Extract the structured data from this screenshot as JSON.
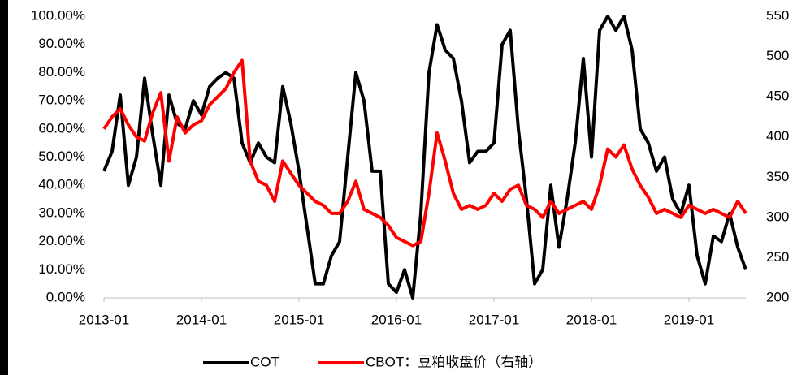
{
  "chart_data": {
    "type": "line",
    "x": [
      "2013-01",
      "2013-02",
      "2013-03",
      "2013-04",
      "2013-05",
      "2013-06",
      "2013-07",
      "2013-08",
      "2013-09",
      "2013-10",
      "2013-11",
      "2013-12",
      "2014-01",
      "2014-02",
      "2014-03",
      "2014-04",
      "2014-05",
      "2014-06",
      "2014-07",
      "2014-08",
      "2014-09",
      "2014-10",
      "2014-11",
      "2014-12",
      "2015-01",
      "2015-02",
      "2015-03",
      "2015-04",
      "2015-05",
      "2015-06",
      "2015-07",
      "2015-08",
      "2015-09",
      "2015-10",
      "2015-11",
      "2015-12",
      "2016-01",
      "2016-02",
      "2016-03",
      "2016-04",
      "2016-05",
      "2016-06",
      "2016-07",
      "2016-08",
      "2016-09",
      "2016-10",
      "2016-11",
      "2016-12",
      "2017-01",
      "2017-02",
      "2017-03",
      "2017-04",
      "2017-05",
      "2017-06",
      "2017-07",
      "2017-08",
      "2017-09",
      "2017-10",
      "2017-11",
      "2017-12",
      "2018-01",
      "2018-02",
      "2018-03",
      "2018-04",
      "2018-05",
      "2018-06",
      "2018-07",
      "2018-08",
      "2018-09",
      "2018-10",
      "2018-11",
      "2018-12",
      "2019-01",
      "2019-02",
      "2019-03",
      "2019-04",
      "2019-05",
      "2019-06",
      "2019-07",
      "2019-08"
    ],
    "xlim": [
      "2013-01",
      "2019-08"
    ],
    "xticks": [
      "2013-01",
      "2014-01",
      "2015-01",
      "2016-01",
      "2017-01",
      "2018-01",
      "2019-01"
    ],
    "series": [
      {
        "name": "COT",
        "color": "#000000",
        "values": [
          45,
          52,
          72,
          40,
          50,
          78,
          58,
          40,
          72,
          62,
          60,
          70,
          65,
          75,
          78,
          80,
          78,
          55,
          48,
          55,
          50,
          48,
          75,
          62,
          45,
          25,
          5,
          5,
          15,
          20,
          50,
          80,
          70,
          45,
          45,
          5,
          2,
          10,
          0,
          30,
          80,
          97,
          88,
          85,
          70,
          48,
          52,
          52,
          55,
          90,
          95,
          60,
          35,
          5,
          10,
          40,
          18,
          35,
          55,
          85,
          50,
          95,
          100,
          95,
          100,
          88,
          60,
          55,
          45,
          50,
          35,
          30,
          40,
          15,
          5,
          22,
          20,
          30,
          18,
          10
        ]
      },
      {
        "name": "CBOT：豆粕收盘价（右轴）",
        "color": "#ff0000",
        "axis": "y2",
        "values": [
          410,
          425,
          435,
          415,
          400,
          395,
          430,
          455,
          370,
          425,
          405,
          415,
          420,
          440,
          450,
          460,
          480,
          495,
          370,
          345,
          340,
          320,
          370,
          355,
          340,
          330,
          320,
          315,
          305,
          305,
          320,
          345,
          310,
          305,
          300,
          290,
          275,
          270,
          265,
          270,
          330,
          405,
          370,
          330,
          310,
          315,
          310,
          315,
          330,
          320,
          335,
          340,
          315,
          310,
          300,
          320,
          305,
          310,
          315,
          320,
          310,
          340,
          385,
          375,
          390,
          360,
          340,
          325,
          305,
          310,
          305,
          300,
          315,
          310,
          305,
          310,
          305,
          300,
          320,
          305
        ]
      }
    ],
    "ylim": [
      0,
      100
    ],
    "yticks": [
      {
        "value": 0,
        "label": "0.00%"
      },
      {
        "value": 10,
        "label": "10.00%"
      },
      {
        "value": 20,
        "label": "20.00%"
      },
      {
        "value": 30,
        "label": "30.00%"
      },
      {
        "value": 40,
        "label": "40.00%"
      },
      {
        "value": 50,
        "label": "50.00%"
      },
      {
        "value": 60,
        "label": "60.00%"
      },
      {
        "value": 70,
        "label": "70.00%"
      },
      {
        "value": 80,
        "label": "80.00%"
      },
      {
        "value": 90,
        "label": "90.00%"
      },
      {
        "value": 100,
        "label": "100.00%"
      }
    ],
    "y2lim": [
      200,
      550
    ],
    "y2ticks": [
      200,
      250,
      300,
      350,
      400,
      450,
      500,
      550
    ]
  }
}
